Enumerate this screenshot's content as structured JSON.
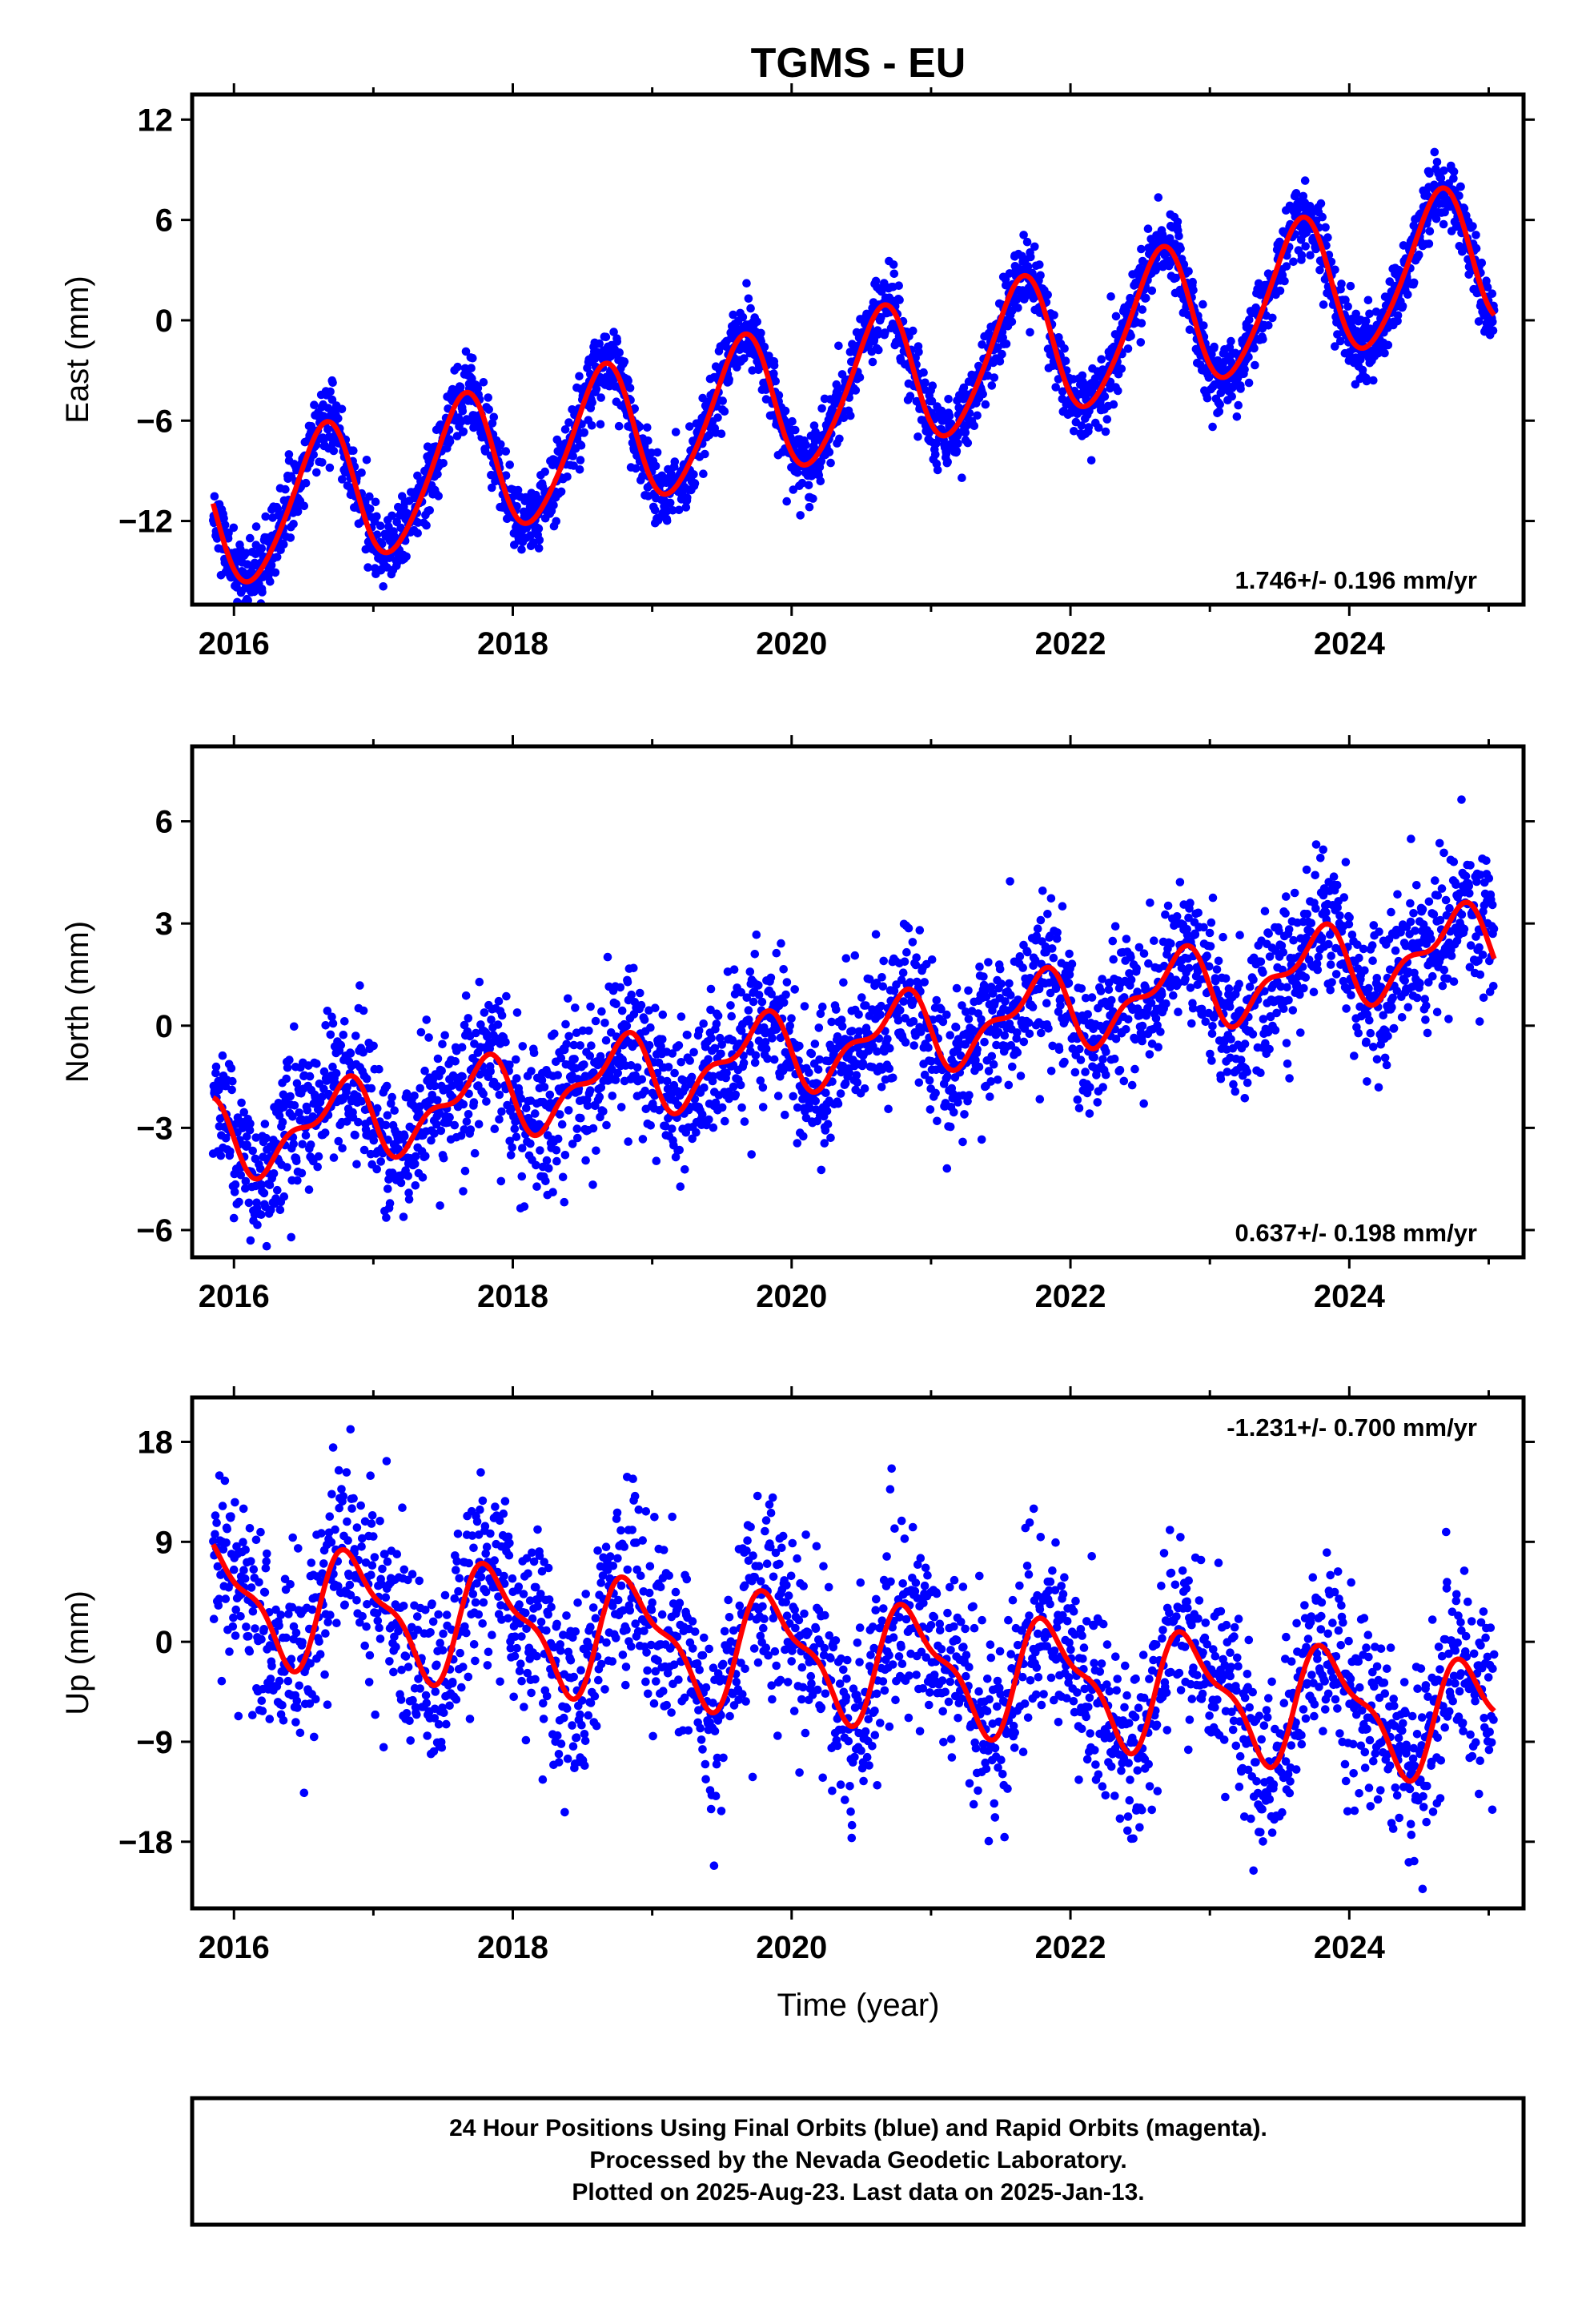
{
  "title": "TGMS - EU",
  "xlabel": "Time (year)",
  "footer": {
    "line1": "24 Hour Positions Using Final Orbits (blue) and Rapid Orbits (magenta).",
    "line2": "Processed by the Nevada Geodetic Laboratory.",
    "line3": "Plotted on 2025-Aug-23. Last data on 2025-Jan-13."
  },
  "colors": {
    "points": "#0000ff",
    "fit": "#ff0000",
    "frame": "#000000"
  },
  "chart_data": [
    {
      "type": "scatter",
      "component": "east",
      "ylabel": "East (mm)",
      "rate": "1.746+/- 0.196 mm/yr",
      "xlim": [
        2015.7,
        2025.25
      ],
      "ylim": [
        -17,
        13.5
      ],
      "xticks": [
        2016,
        2018,
        2020,
        2022,
        2024
      ],
      "yticks": [
        12,
        6,
        0,
        -6,
        -12
      ],
      "ytick_labels": [
        "12",
        "6",
        "0",
        "−6",
        "−12"
      ],
      "x_start": 2015.85,
      "x_end": 2025.04,
      "model": {
        "offset": -12.0,
        "rate": 1.746,
        "amp1": 4.2,
        "phase1": 0.39,
        "amp2": 0.5,
        "phase2": 0.1
      },
      "scatter": {
        "n": 3000,
        "sigma": 1.1,
        "seed": 11
      },
      "grid": false
    },
    {
      "type": "scatter",
      "component": "north",
      "ylabel": "North (mm)",
      "rate": "0.637+/- 0.198 mm/yr",
      "xlim": [
        2015.7,
        2025.25
      ],
      "ylim": [
        -6.8,
        8.2
      ],
      "xticks": [
        2016,
        2018,
        2020,
        2022,
        2024
      ],
      "yticks": [
        6,
        3,
        0,
        -3,
        -6
      ],
      "ytick_labels": [
        "6",
        "3",
        "0",
        "−3",
        "−6"
      ],
      "x_start": 2015.85,
      "x_end": 2025.04,
      "model": {
        "offset": -3.4,
        "rate": 0.637,
        "amp1": 1.0,
        "phase1": 0.5,
        "amp2": 0.5,
        "phase2": 0.25
      },
      "scatter": {
        "n": 2600,
        "sigma": 1.05,
        "seed": 23
      },
      "grid": false
    },
    {
      "type": "scatter",
      "component": "up",
      "ylabel": "Up (mm)",
      "rate": "-1.231+/- 0.700 mm/yr",
      "xlim": [
        2015.7,
        2025.25
      ],
      "ylim": [
        -24,
        22
      ],
      "xticks": [
        2016,
        2018,
        2020,
        2022,
        2024
      ],
      "yticks": [
        18,
        9,
        0,
        -9,
        -18
      ],
      "ytick_labels": [
        "18",
        "9",
        "0",
        "−9",
        "−18"
      ],
      "x_start": 2015.85,
      "x_end": 2025.04,
      "model": {
        "offset": 4.0,
        "rate": -1.231,
        "amp1": 4.8,
        "phase1": 0.62,
        "amp2": 1.8,
        "phase2": 0.1
      },
      "scatter": {
        "n": 2300,
        "sigma": 4.3,
        "seed": 37
      },
      "grid": false
    }
  ]
}
